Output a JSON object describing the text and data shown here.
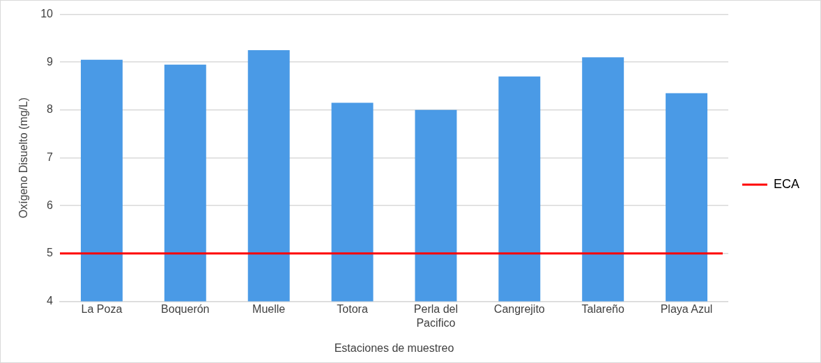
{
  "chart_data": {
    "type": "bar",
    "xlabel": "Estaciones de muestreo",
    "ylabel": "Oxígeno Disuelto (mg/L)",
    "categories": [
      "La Poza",
      "Boquerón",
      "Muelle",
      "Totora",
      "Perla del Pacifico",
      "Cangrejito",
      "Talareño",
      "Playa Azul"
    ],
    "values": [
      9.05,
      8.95,
      9.25,
      8.15,
      8.0,
      8.7,
      9.1,
      8.35
    ],
    "color": "#4a9ae6",
    "ylim": [
      4,
      10
    ],
    "yticks": [
      4,
      5,
      6,
      7,
      8,
      9,
      10
    ],
    "grid": "y",
    "legend": "right",
    "ref_lines": [
      {
        "axis": "y",
        "value": 5,
        "label": "ECA",
        "color": "#ff0000"
      }
    ]
  }
}
